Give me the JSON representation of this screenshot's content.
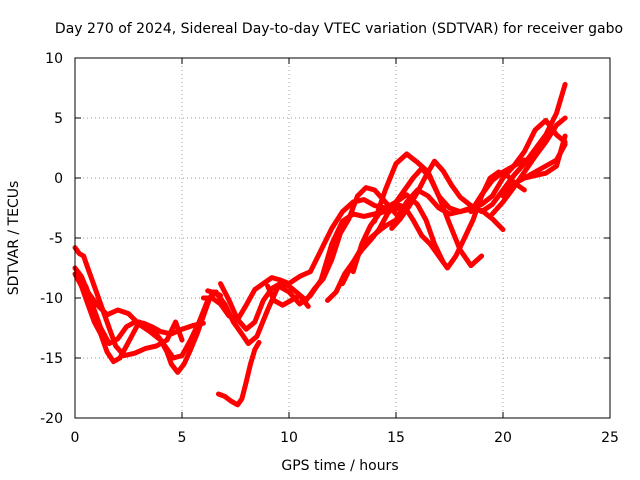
{
  "chart_data": {
    "type": "line",
    "title": "Day 270 of 2024, Sidereal Day-to-day VTEC variation (SDTVAR) for receiver gabo",
    "xlabel": "GPS time / hours",
    "ylabel": "SDTVAR / TECUs",
    "xlim": [
      0,
      25
    ],
    "ylim": [
      -20,
      10
    ],
    "xticks": [
      0,
      5,
      10,
      15,
      20,
      25
    ],
    "yticks": [
      -20,
      -15,
      -10,
      -5,
      0,
      5,
      10
    ],
    "grid": true,
    "legend": "none",
    "series_color": "#ff0000",
    "series": [
      {
        "x": [
          0.0,
          0.2,
          0.4,
          0.6,
          0.8,
          1.0,
          1.3,
          1.6,
          1.9,
          2.3,
          2.8,
          3.3,
          3.8,
          4.3,
          4.7,
          5.0
        ],
        "y": [
          -5.8,
          -6.3,
          -6.5,
          -7.5,
          -8.5,
          -9.5,
          -11.0,
          -12.5,
          -14.0,
          -14.8,
          -14.6,
          -14.2,
          -14.0,
          -13.5,
          -12.0,
          -13.5
        ]
      },
      {
        "x": [
          0.0,
          0.3,
          0.6,
          0.9,
          1.2,
          1.5,
          1.8,
          2.1,
          2.4,
          2.7,
          3.0,
          3.4,
          3.8,
          4.2,
          4.6,
          5.0,
          5.4,
          5.8,
          6.2,
          6.5,
          6.8
        ],
        "y": [
          -8.0,
          -9.0,
          -10.5,
          -12.0,
          -13.0,
          -14.5,
          -15.3,
          -15.0,
          -14.0,
          -13.0,
          -12.0,
          -12.3,
          -13.0,
          -14.0,
          -15.0,
          -14.8,
          -13.5,
          -12.0,
          -10.2,
          -9.5,
          -9.8
        ]
      },
      {
        "x": [
          0.0,
          0.3,
          0.6,
          1.0,
          1.5,
          2.0,
          2.5,
          3.0,
          3.5,
          4.0,
          4.3,
          4.5,
          4.8,
          5.1,
          5.4,
          5.7,
          6.0,
          6.3,
          6.6
        ],
        "y": [
          -7.5,
          -8.2,
          -9.5,
          -10.5,
          -11.4,
          -11.0,
          -11.3,
          -12.2,
          -12.8,
          -13.5,
          -14.5,
          -15.5,
          -16.2,
          -15.5,
          -14.3,
          -13.0,
          -11.5,
          -10.0,
          -9.5
        ]
      },
      {
        "x": [
          0.5,
          0.8,
          1.2,
          1.6,
          2.0,
          2.4,
          2.8,
          3.2,
          3.6,
          4.0,
          4.5,
          5.0,
          5.5,
          6.0
        ],
        "y": [
          -9.0,
          -10.5,
          -12.5,
          -13.8,
          -13.4,
          -12.4,
          -12.0,
          -12.1,
          -12.4,
          -12.8,
          -13.0,
          -12.6,
          -12.3,
          -12.1
        ]
      },
      {
        "x": [
          6.0,
          6.4,
          6.8,
          7.2,
          7.6,
          8.0,
          8.4,
          8.8,
          9.2,
          9.6,
          10.0,
          10.5,
          11.0,
          11.5,
          12.0,
          12.5,
          13.0,
          13.5,
          14.0,
          14.5,
          15.0,
          15.5,
          16.0,
          16.4,
          16.8,
          17.2
        ],
        "y": [
          -10.0,
          -10.0,
          -10.5,
          -11.5,
          -11.8,
          -10.6,
          -9.3,
          -8.8,
          -8.3,
          -8.5,
          -8.8,
          -8.2,
          -7.8,
          -6.0,
          -4.2,
          -2.8,
          -2.0,
          -1.8,
          -2.3,
          -2.5,
          -2.0,
          -1.4,
          -2.2,
          -3.5,
          -5.5,
          -7.0
        ]
      },
      {
        "x": [
          6.2,
          6.6,
          7.0,
          7.4,
          7.8,
          8.1,
          8.5,
          9.0,
          9.5,
          10.0,
          10.5,
          11.0,
          11.5,
          12.0,
          12.5,
          13.0,
          13.5,
          14.0,
          14.5,
          15.0,
          15.5
        ],
        "y": [
          -9.4,
          -9.6,
          -10.5,
          -12.0,
          -13.0,
          -13.8,
          -13.2,
          -11.0,
          -9.0,
          -9.5,
          -10.5,
          -9.8,
          -8.5,
          -5.5,
          -3.6,
          -3.0,
          -3.2,
          -3.0,
          -2.8,
          -2.6,
          -2.4
        ]
      },
      {
        "x": [
          6.8,
          7.2,
          7.6,
          8.0,
          8.4,
          8.8,
          9.2,
          9.6,
          10.0,
          10.4,
          10.8,
          11.2,
          11.6,
          12.0,
          12.4,
          12.8,
          13.2,
          13.6,
          14.0,
          14.4,
          14.8,
          15.2
        ],
        "y": [
          -8.8,
          -10.2,
          -11.8,
          -12.6,
          -12.0,
          -10.2,
          -9.2,
          -8.8,
          -9.0,
          -9.6,
          -10.2,
          -9.2,
          -8.4,
          -6.8,
          -4.6,
          -3.4,
          -1.5,
          -0.8,
          -1.0,
          -1.8,
          -2.6,
          -3.4
        ]
      },
      {
        "x": [
          6.7,
          7.0,
          7.3,
          7.6,
          7.8,
          8.0,
          8.2,
          8.4,
          8.6
        ],
        "y": [
          -18.0,
          -18.2,
          -18.6,
          -18.9,
          -18.4,
          -17.0,
          -15.5,
          -14.3,
          -13.7
        ]
      },
      {
        "x": [
          9.0,
          9.3,
          9.7,
          10.1,
          10.5,
          10.9
        ],
        "y": [
          -9.0,
          -10.2,
          -10.6,
          -10.2,
          -9.8,
          -10.7
        ]
      },
      {
        "x": [
          11.8,
          12.2,
          12.6,
          13.0,
          13.4,
          13.8,
          14.2,
          14.6,
          15.0,
          15.4,
          15.8,
          16.2,
          16.6,
          17.0,
          17.5,
          18.0,
          18.5,
          19.0,
          19.5,
          20.0,
          20.5,
          21.0
        ],
        "y": [
          -10.2,
          -9.5,
          -8.0,
          -7.0,
          -6.0,
          -5.2,
          -4.3,
          -3.0,
          -2.0,
          -1.0,
          0.0,
          0.8,
          0.0,
          -1.5,
          -2.5,
          -2.8,
          -2.5,
          -2.2,
          -1.5,
          0.0,
          1.0,
          1.5
        ]
      },
      {
        "x": [
          12.5,
          13.0,
          13.5,
          14.0,
          14.5,
          15.0,
          15.5,
          16.0,
          16.5,
          17.0,
          17.5,
          18.0,
          18.5,
          19.0,
          19.5,
          20.0
        ],
        "y": [
          -8.8,
          -7.0,
          -5.5,
          -4.7,
          -4.0,
          -3.5,
          -2.0,
          -1.0,
          -1.5,
          -2.5,
          -3.0,
          -2.8,
          -2.6,
          -2.7,
          -3.4,
          -4.3
        ]
      },
      {
        "x": [
          13.0,
          13.4,
          13.8,
          14.2,
          14.6,
          15.0,
          15.4,
          15.8,
          16.2,
          16.6,
          17.0,
          17.4,
          17.8,
          18.2,
          18.6,
          19.0,
          19.4,
          19.8,
          20.2,
          20.6,
          21.0
        ],
        "y": [
          -7.8,
          -5.5,
          -4.0,
          -3.0,
          -2.5,
          -2.2,
          -2.4,
          -3.5,
          -4.8,
          -5.5,
          -6.5,
          -7.5,
          -6.5,
          -5.0,
          -3.5,
          -1.5,
          0.0,
          0.5,
          0.2,
          -0.5,
          -1.0
        ]
      },
      {
        "x": [
          14.0,
          14.5,
          15.0,
          15.5,
          16.0,
          16.5,
          17.0,
          17.5,
          18.0,
          18.5,
          19.0
        ],
        "y": [
          -3.6,
          -1.0,
          1.2,
          2.0,
          1.3,
          0.5,
          -1.5,
          -3.8,
          -6.0,
          -7.3,
          -6.5
        ]
      },
      {
        "x": [
          14.8,
          15.2,
          15.6,
          16.0,
          16.4,
          16.8,
          17.2,
          17.6,
          18.0,
          18.5,
          19.0,
          19.5,
          20.0,
          20.5,
          21.0,
          21.5,
          22.0,
          22.5,
          22.9
        ],
        "y": [
          -4.2,
          -3.4,
          -2.4,
          -1.2,
          0.2,
          1.4,
          0.6,
          -0.6,
          -1.6,
          -2.3,
          -2.8,
          -2.2,
          -1.0,
          0.2,
          1.2,
          2.4,
          3.6,
          5.4,
          7.8
        ]
      },
      {
        "x": [
          18.5,
          19.0,
          19.5,
          20.0,
          20.5,
          21.0,
          21.5,
          22.0,
          22.5,
          22.9
        ],
        "y": [
          -2.8,
          -1.4,
          -0.2,
          0.5,
          1.0,
          2.2,
          4.0,
          4.8,
          3.6,
          3.0
        ]
      },
      {
        "x": [
          19.5,
          20.0,
          20.5,
          21.0,
          21.5,
          22.0,
          22.5,
          22.9
        ],
        "y": [
          -3.0,
          -2.0,
          -0.8,
          0.5,
          1.8,
          3.0,
          4.4,
          5.0
        ]
      },
      {
        "x": [
          20.0,
          20.5,
          21.0,
          21.5,
          22.0,
          22.5,
          22.9
        ],
        "y": [
          -1.5,
          -0.5,
          0.0,
          0.2,
          0.4,
          1.0,
          3.5
        ]
      },
      {
        "x": [
          20.5,
          21.0,
          21.5,
          22.0,
          22.5,
          22.9
        ],
        "y": [
          -0.5,
          0.0,
          0.5,
          1.0,
          1.5,
          2.8
        ]
      }
    ]
  }
}
